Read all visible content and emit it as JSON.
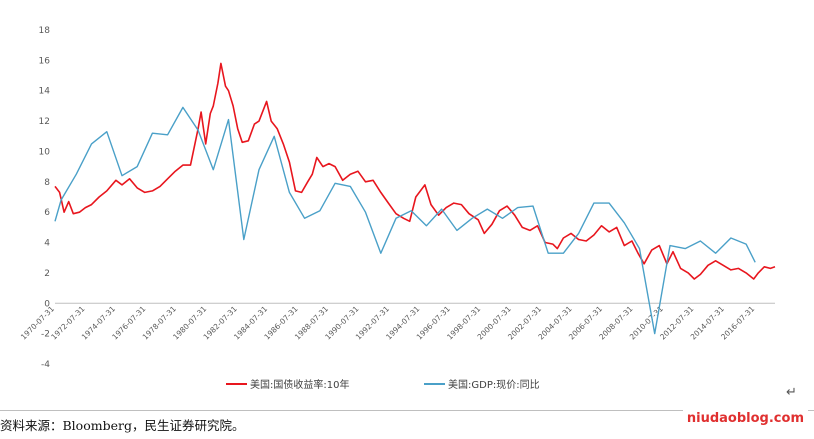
{
  "chart_data": {
    "type": "line",
    "title": "",
    "xlabel": "",
    "ylabel": "",
    "ylim": [
      -4,
      18
    ],
    "yticks": [
      "-4",
      "-2",
      "0",
      "2",
      "4",
      "6",
      "8",
      "10",
      "12",
      "14",
      "16",
      "18"
    ],
    "xticks": [
      "1970-07-31",
      "1972-07-31",
      "1974-07-31",
      "1976-07-31",
      "1978-07-31",
      "1980-07-31",
      "1982-07-31",
      "1984-07-31",
      "1986-07-31",
      "1988-07-31",
      "1990-07-31",
      "1992-07-31",
      "1994-07-31",
      "1996-07-31",
      "1998-07-31",
      "2000-07-31",
      "2002-07-31",
      "2004-07-31",
      "2006-07-31",
      "2008-07-31",
      "2010-07-31",
      "2012-07-31",
      "2014-07-31",
      "2016-07-31"
    ],
    "xlim": [
      1970.6,
      2017.9
    ],
    "legend_position": "bottom",
    "grid": false,
    "series": [
      {
        "name": "美国:国债收益率:10年",
        "color": "#e8161e",
        "x": [
          1970.6,
          1970.9,
          1971.2,
          1971.5,
          1971.8,
          1972.2,
          1972.6,
          1973.0,
          1973.5,
          1974.0,
          1974.6,
          1975.0,
          1975.5,
          1976.0,
          1976.5,
          1977.0,
          1977.5,
          1978.0,
          1978.5,
          1979.0,
          1979.5,
          1980.0,
          1980.2,
          1980.5,
          1980.8,
          1981.0,
          1981.3,
          1981.5,
          1981.8,
          1982.0,
          1982.3,
          1982.6,
          1982.9,
          1983.3,
          1983.7,
          1984.0,
          1984.5,
          1984.8,
          1985.2,
          1985.6,
          1986.0,
          1986.4,
          1986.8,
          1987.2,
          1987.5,
          1987.8,
          1988.2,
          1988.6,
          1989.0,
          1989.5,
          1990.0,
          1990.5,
          1991.0,
          1991.5,
          1992.0,
          1992.5,
          1993.0,
          1993.5,
          1993.9,
          1994.3,
          1994.9,
          1995.3,
          1995.8,
          1996.3,
          1996.8,
          1997.3,
          1997.8,
          1998.4,
          1998.8,
          1999.3,
          1999.8,
          2000.3,
          2000.8,
          2001.3,
          2001.8,
          2002.3,
          2002.8,
          2003.3,
          2003.6,
          2004.0,
          2004.5,
          2005.0,
          2005.5,
          2006.0,
          2006.5,
          2007.0,
          2007.5,
          2008.0,
          2008.5,
          2008.9,
          2009.3,
          2009.8,
          2010.3,
          2010.8,
          2011.2,
          2011.7,
          2012.2,
          2012.6,
          2013.0,
          2013.5,
          2014.0,
          2014.5,
          2015.0,
          2015.5,
          2016.0,
          2016.5,
          2016.8,
          2017.2,
          2017.6,
          2017.9
        ],
        "y": [
          7.7,
          7.3,
          6.0,
          6.7,
          5.9,
          6.0,
          6.3,
          6.5,
          7.0,
          7.4,
          8.1,
          7.8,
          8.2,
          7.6,
          7.3,
          7.4,
          7.7,
          8.2,
          8.7,
          9.1,
          9.1,
          11.5,
          12.6,
          10.5,
          12.5,
          13.0,
          14.5,
          15.8,
          14.3,
          14.0,
          13.0,
          11.5,
          10.6,
          10.7,
          11.8,
          12.0,
          13.3,
          12.0,
          11.5,
          10.5,
          9.3,
          7.4,
          7.3,
          8.0,
          8.5,
          9.6,
          9.0,
          9.2,
          9.0,
          8.1,
          8.5,
          8.7,
          8.0,
          8.1,
          7.3,
          6.6,
          5.9,
          5.6,
          5.4,
          7.0,
          7.8,
          6.5,
          5.8,
          6.3,
          6.6,
          6.5,
          5.9,
          5.5,
          4.6,
          5.2,
          6.1,
          6.4,
          5.8,
          5.0,
          4.8,
          5.1,
          4.0,
          3.9,
          3.6,
          4.3,
          4.6,
          4.2,
          4.1,
          4.5,
          5.1,
          4.7,
          5.0,
          3.8,
          4.1,
          3.3,
          2.6,
          3.5,
          3.8,
          2.6,
          3.4,
          2.3,
          2.0,
          1.6,
          1.9,
          2.5,
          2.8,
          2.5,
          2.2,
          2.3,
          2.0,
          1.6,
          2.0,
          2.4,
          2.3,
          2.4
        ]
      },
      {
        "name": "美国:GDP:现价:同比",
        "color": "#4aa0c8",
        "x": [
          1970.6,
          1971.0,
          1972.0,
          1973.0,
          1974.0,
          1975.0,
          1976.0,
          1977.0,
          1978.0,
          1979.0,
          1980.0,
          1981.0,
          1982.0,
          1983.0,
          1984.0,
          1985.0,
          1986.0,
          1987.0,
          1988.0,
          1989.0,
          1990.0,
          1991.0,
          1992.0,
          1993.0,
          1994.0,
          1995.0,
          1996.0,
          1997.0,
          1998.0,
          1999.0,
          2000.0,
          2001.0,
          2002.0,
          2003.0,
          2004.0,
          2005.0,
          2006.0,
          2007.0,
          2008.0,
          2009.0,
          2010.0,
          2011.0,
          2012.0,
          2013.0,
          2014.0,
          2015.0,
          2016.0,
          2016.6
        ],
        "y": [
          5.4,
          6.8,
          8.5,
          10.5,
          11.3,
          8.4,
          9.0,
          11.2,
          11.1,
          12.9,
          11.4,
          8.8,
          12.1,
          4.2,
          8.8,
          11.0,
          7.3,
          5.6,
          6.1,
          7.9,
          7.7,
          6.0,
          3.3,
          5.6,
          6.1,
          5.1,
          6.2,
          4.8,
          5.6,
          6.2,
          5.6,
          6.3,
          6.4,
          3.3,
          3.3,
          4.6,
          6.6,
          6.6,
          5.3,
          3.6,
          -2.0,
          3.8,
          3.6,
          4.1,
          3.3,
          4.3,
          3.9,
          2.7
        ]
      }
    ]
  },
  "source_note": "资料来源：Bloomberg，民生证券研究院。",
  "watermark": "niudaoblog.com",
  "return_mark": "↵"
}
